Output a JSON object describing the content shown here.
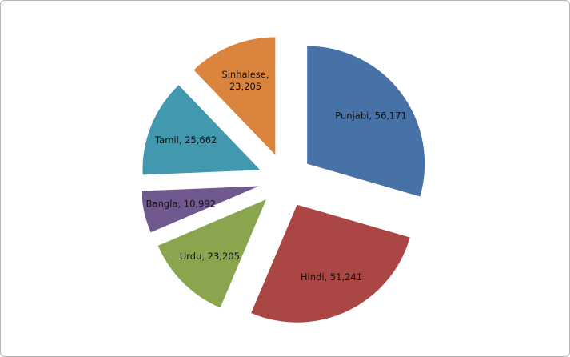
{
  "chart_data": {
    "type": "pie",
    "exploded": true,
    "start_angle": "top, clockwise",
    "categories": [
      "Punjabi",
      "Hindi",
      "Urdu",
      "Bangla",
      "Tamil",
      "Sinhalese"
    ],
    "values": [
      56171,
      51241,
      23205,
      10992,
      25662,
      23205
    ],
    "labels": [
      "Punjabi, 56,171",
      "Hindi, 51,241",
      "Urdu, 23,205",
      "Bangla, 10,992",
      "Tamil, 25,662",
      "Sinhalese, 23,205"
    ],
    "colors": [
      "#4672a8",
      "#aa4644",
      "#89a54e",
      "#71588f",
      "#4198af",
      "#db843d"
    ],
    "title": "",
    "legend": "none"
  }
}
